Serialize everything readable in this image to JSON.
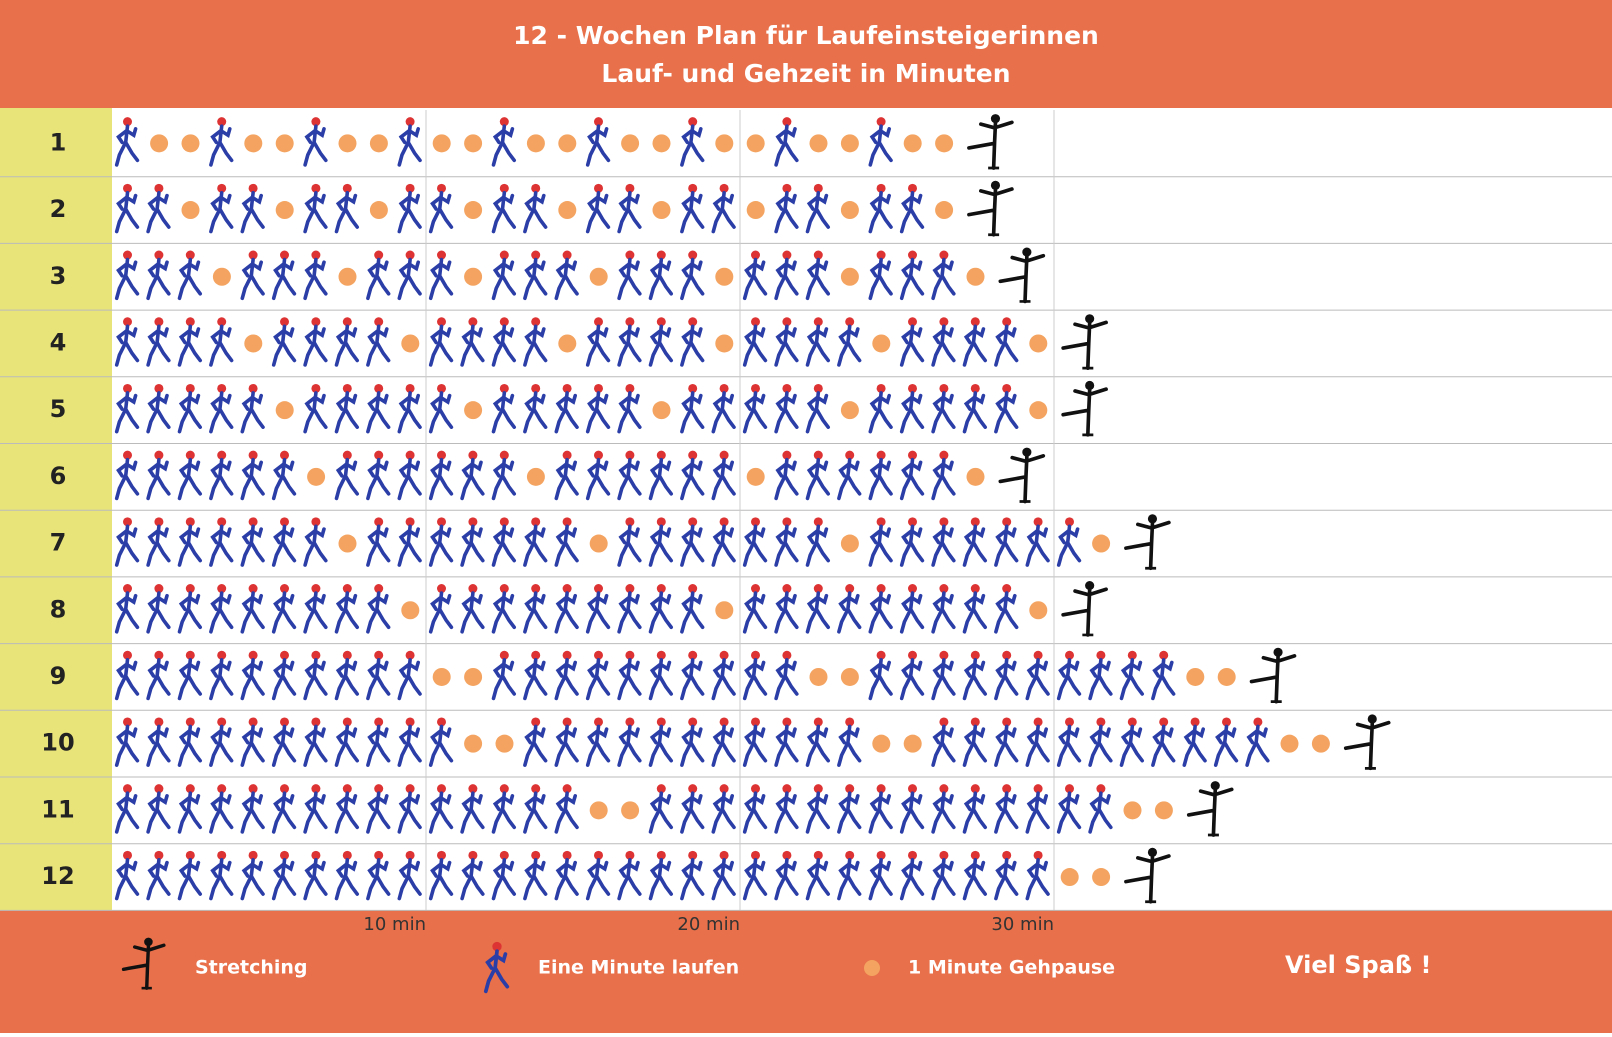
{
  "header": {
    "title": "12 - Wochen Plan für Laufeinsteigerinnen",
    "subtitle": "Lauf- und Gehzeit in Minuten"
  },
  "weeks": [
    {
      "label": "1",
      "run": [
        1,
        1,
        1,
        1,
        1,
        1,
        1,
        1,
        1
      ],
      "walk": [
        2,
        2,
        2,
        2,
        2,
        2,
        2,
        2,
        2
      ]
    },
    {
      "label": "2",
      "run": [
        2,
        2,
        2,
        2,
        2,
        2,
        2,
        2,
        2
      ],
      "walk": [
        1,
        1,
        1,
        1,
        1,
        1,
        1,
        1,
        1
      ]
    },
    {
      "label": "3",
      "run": [
        3,
        3,
        3,
        3,
        3,
        3,
        3
      ],
      "walk": [
        1,
        1,
        1,
        1,
        1,
        1,
        1
      ]
    },
    {
      "label": "4",
      "run": [
        4,
        4,
        4,
        4,
        4,
        4
      ],
      "walk": [
        1,
        1,
        1,
        1,
        1,
        1
      ]
    },
    {
      "label": "5",
      "run": [
        5,
        5,
        5,
        5,
        5
      ],
      "walk": [
        1,
        1,
        1,
        1,
        1
      ]
    },
    {
      "label": "6",
      "run": [
        6,
        6,
        6,
        6
      ],
      "walk": [
        1,
        1,
        1,
        1
      ]
    },
    {
      "label": "7",
      "run": [
        7,
        7,
        7,
        7
      ],
      "walk": [
        1,
        1,
        1,
        1
      ]
    },
    {
      "label": "8",
      "run": [
        9,
        9,
        9
      ],
      "walk": [
        1,
        1,
        1
      ]
    },
    {
      "label": "9",
      "run": [
        10,
        10,
        10
      ],
      "walk": [
        2,
        2,
        2
      ]
    },
    {
      "label": "10",
      "run": [
        11,
        11,
        11
      ],
      "walk": [
        2,
        2,
        2
      ]
    },
    {
      "label": "11",
      "run": [
        15,
        15
      ],
      "walk": [
        2,
        2
      ]
    },
    {
      "label": "12",
      "run": [
        30
      ],
      "walk": [
        2
      ]
    }
  ],
  "axis": [
    {
      "value": 10,
      "label": "10 min"
    },
    {
      "value": 20,
      "label": "20 min"
    },
    {
      "value": 30,
      "label": "30 min"
    }
  ],
  "legend": {
    "stretching": "Stretching",
    "run": "Eine Minute laufen",
    "walk": "1 Minute Gehpause"
  },
  "footer": {
    "text": "Viel Spaß !"
  }
}
